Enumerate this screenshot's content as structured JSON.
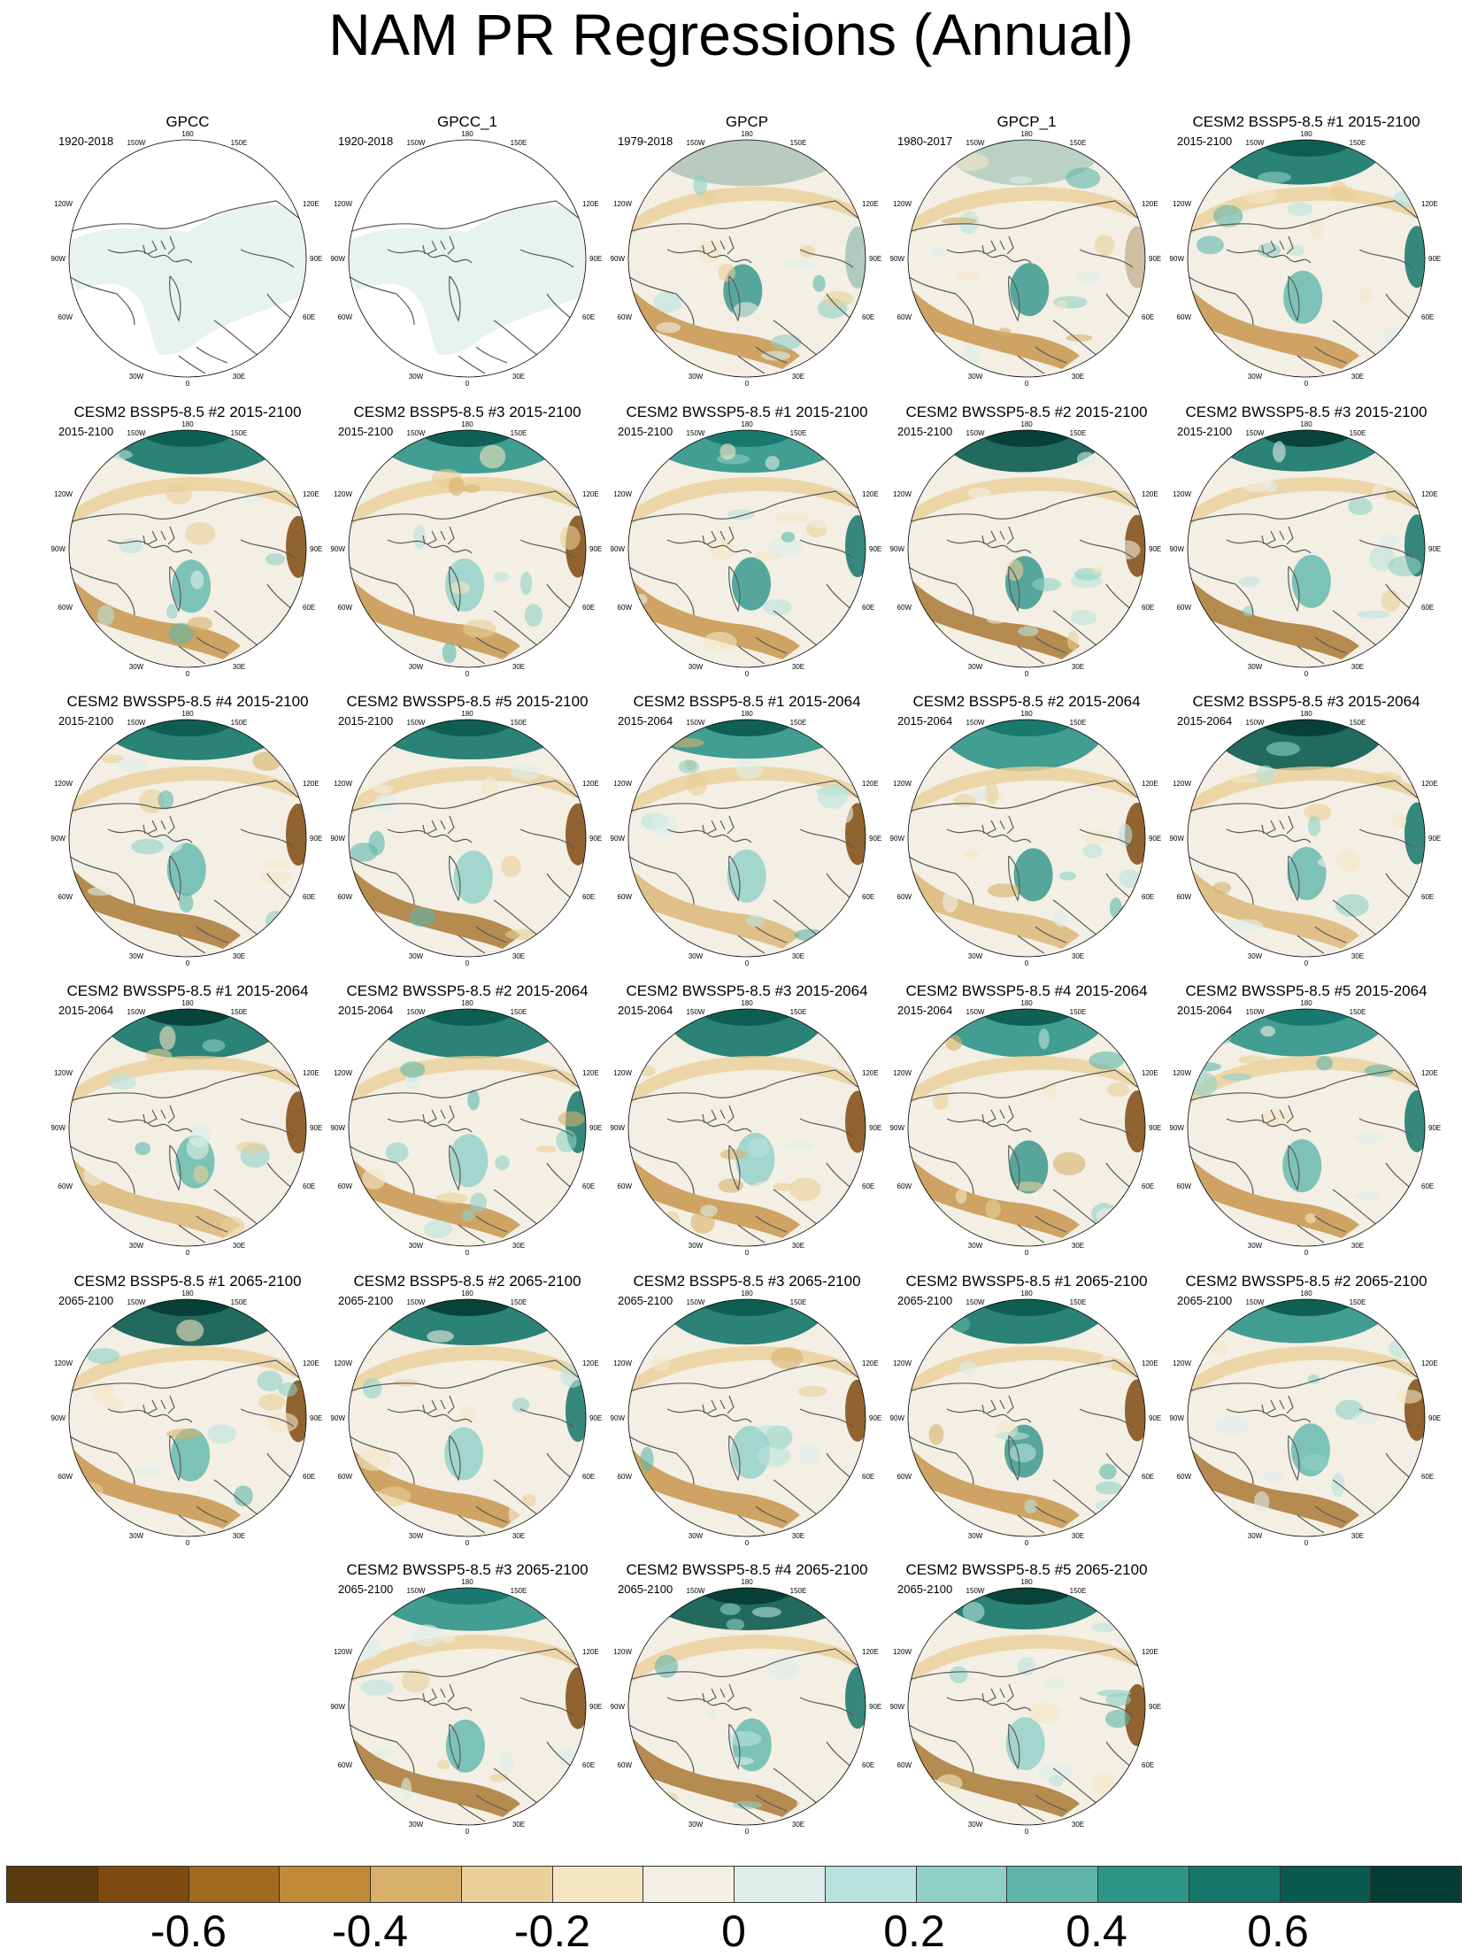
{
  "figure": {
    "title": "NAM PR Regressions (Annual)"
  },
  "lon_labels": {
    "top": "180",
    "top_left": "150W",
    "top_right": "150E",
    "upper_left": "120W",
    "upper_right": "120E",
    "left": "90W",
    "right": "90E",
    "lower_left": "60W",
    "lower_right": "60E",
    "bottom_left": "30W",
    "bottom_right": "30E",
    "bottom": "0"
  },
  "panels": [
    {
      "title": "GPCC",
      "years": "1920-2018"
    },
    {
      "title": "GPCC_1",
      "years": "1920-2018"
    },
    {
      "title": "GPCP",
      "years": "1979-2018"
    },
    {
      "title": "GPCP_1",
      "years": "1980-2017"
    },
    {
      "title": "CESM2 BSSP5-8.5 #1 2015-2100",
      "years": "2015-2100"
    },
    {
      "title": "CESM2 BSSP5-8.5 #2 2015-2100",
      "years": "2015-2100"
    },
    {
      "title": "CESM2 BSSP5-8.5 #3 2015-2100",
      "years": "2015-2100"
    },
    {
      "title": "CESM2 BWSSP5-8.5 #1 2015-2100",
      "years": "2015-2100"
    },
    {
      "title": "CESM2 BWSSP5-8.5 #2 2015-2100",
      "years": "2015-2100"
    },
    {
      "title": "CESM2 BWSSP5-8.5 #3 2015-2100",
      "years": "2015-2100"
    },
    {
      "title": "CESM2 BWSSP5-8.5 #4 2015-2100",
      "years": "2015-2100"
    },
    {
      "title": "CESM2 BWSSP5-8.5 #5 2015-2100",
      "years": "2015-2100"
    },
    {
      "title": "CESM2 BSSP5-8.5 #1 2015-2064",
      "years": "2015-2064"
    },
    {
      "title": "CESM2 BSSP5-8.5 #2 2015-2064",
      "years": "2015-2064"
    },
    {
      "title": "CESM2 BSSP5-8.5 #3 2015-2064",
      "years": "2015-2064"
    },
    {
      "title": "CESM2 BWSSP5-8.5 #1 2015-2064",
      "years": "2015-2064"
    },
    {
      "title": "CESM2 BWSSP5-8.5 #2 2015-2064",
      "years": "2015-2064"
    },
    {
      "title": "CESM2 BWSSP5-8.5 #3 2015-2064",
      "years": "2015-2064"
    },
    {
      "title": "CESM2 BWSSP5-8.5 #4 2015-2064",
      "years": "2015-2064"
    },
    {
      "title": "CESM2 BWSSP5-8.5 #5 2015-2064",
      "years": "2015-2064"
    },
    {
      "title": "CESM2 BSSP5-8.5 #1 2065-2100",
      "years": "2065-2100"
    },
    {
      "title": "CESM2 BSSP5-8.5 #2 2065-2100",
      "years": "2065-2100"
    },
    {
      "title": "CESM2 BSSP5-8.5 #3 2065-2100",
      "years": "2065-2100"
    },
    {
      "title": "CESM2 BWSSP5-8.5 #1 2065-2100",
      "years": "2065-2100"
    },
    {
      "title": "CESM2 BWSSP5-8.5 #2 2065-2100",
      "years": "2065-2100"
    },
    {
      "title": "CESM2 BWSSP5-8.5 #3 2065-2100",
      "years": "2065-2100"
    },
    {
      "title": "CESM2 BWSSP5-8.5 #4 2065-2100",
      "years": "2065-2100"
    },
    {
      "title": "CESM2 BWSSP5-8.5 #5 2065-2100",
      "years": "2065-2100"
    }
  ],
  "colorbar": {
    "colors": [
      "#5b3b10",
      "#7e4a10",
      "#a06a1f",
      "#c18a38",
      "#d8b06a",
      "#eacf98",
      "#f4e6c4",
      "#f3efe4",
      "#ddeeea",
      "#b9e2dc",
      "#8fd0c6",
      "#5fb6aa",
      "#2f9488",
      "#15766a",
      "#0b5a4f",
      "#053c33"
    ],
    "labels": [
      "-0.6",
      "-0.4",
      "-0.2",
      "0",
      "0.2",
      "0.4",
      "0.6"
    ]
  }
}
